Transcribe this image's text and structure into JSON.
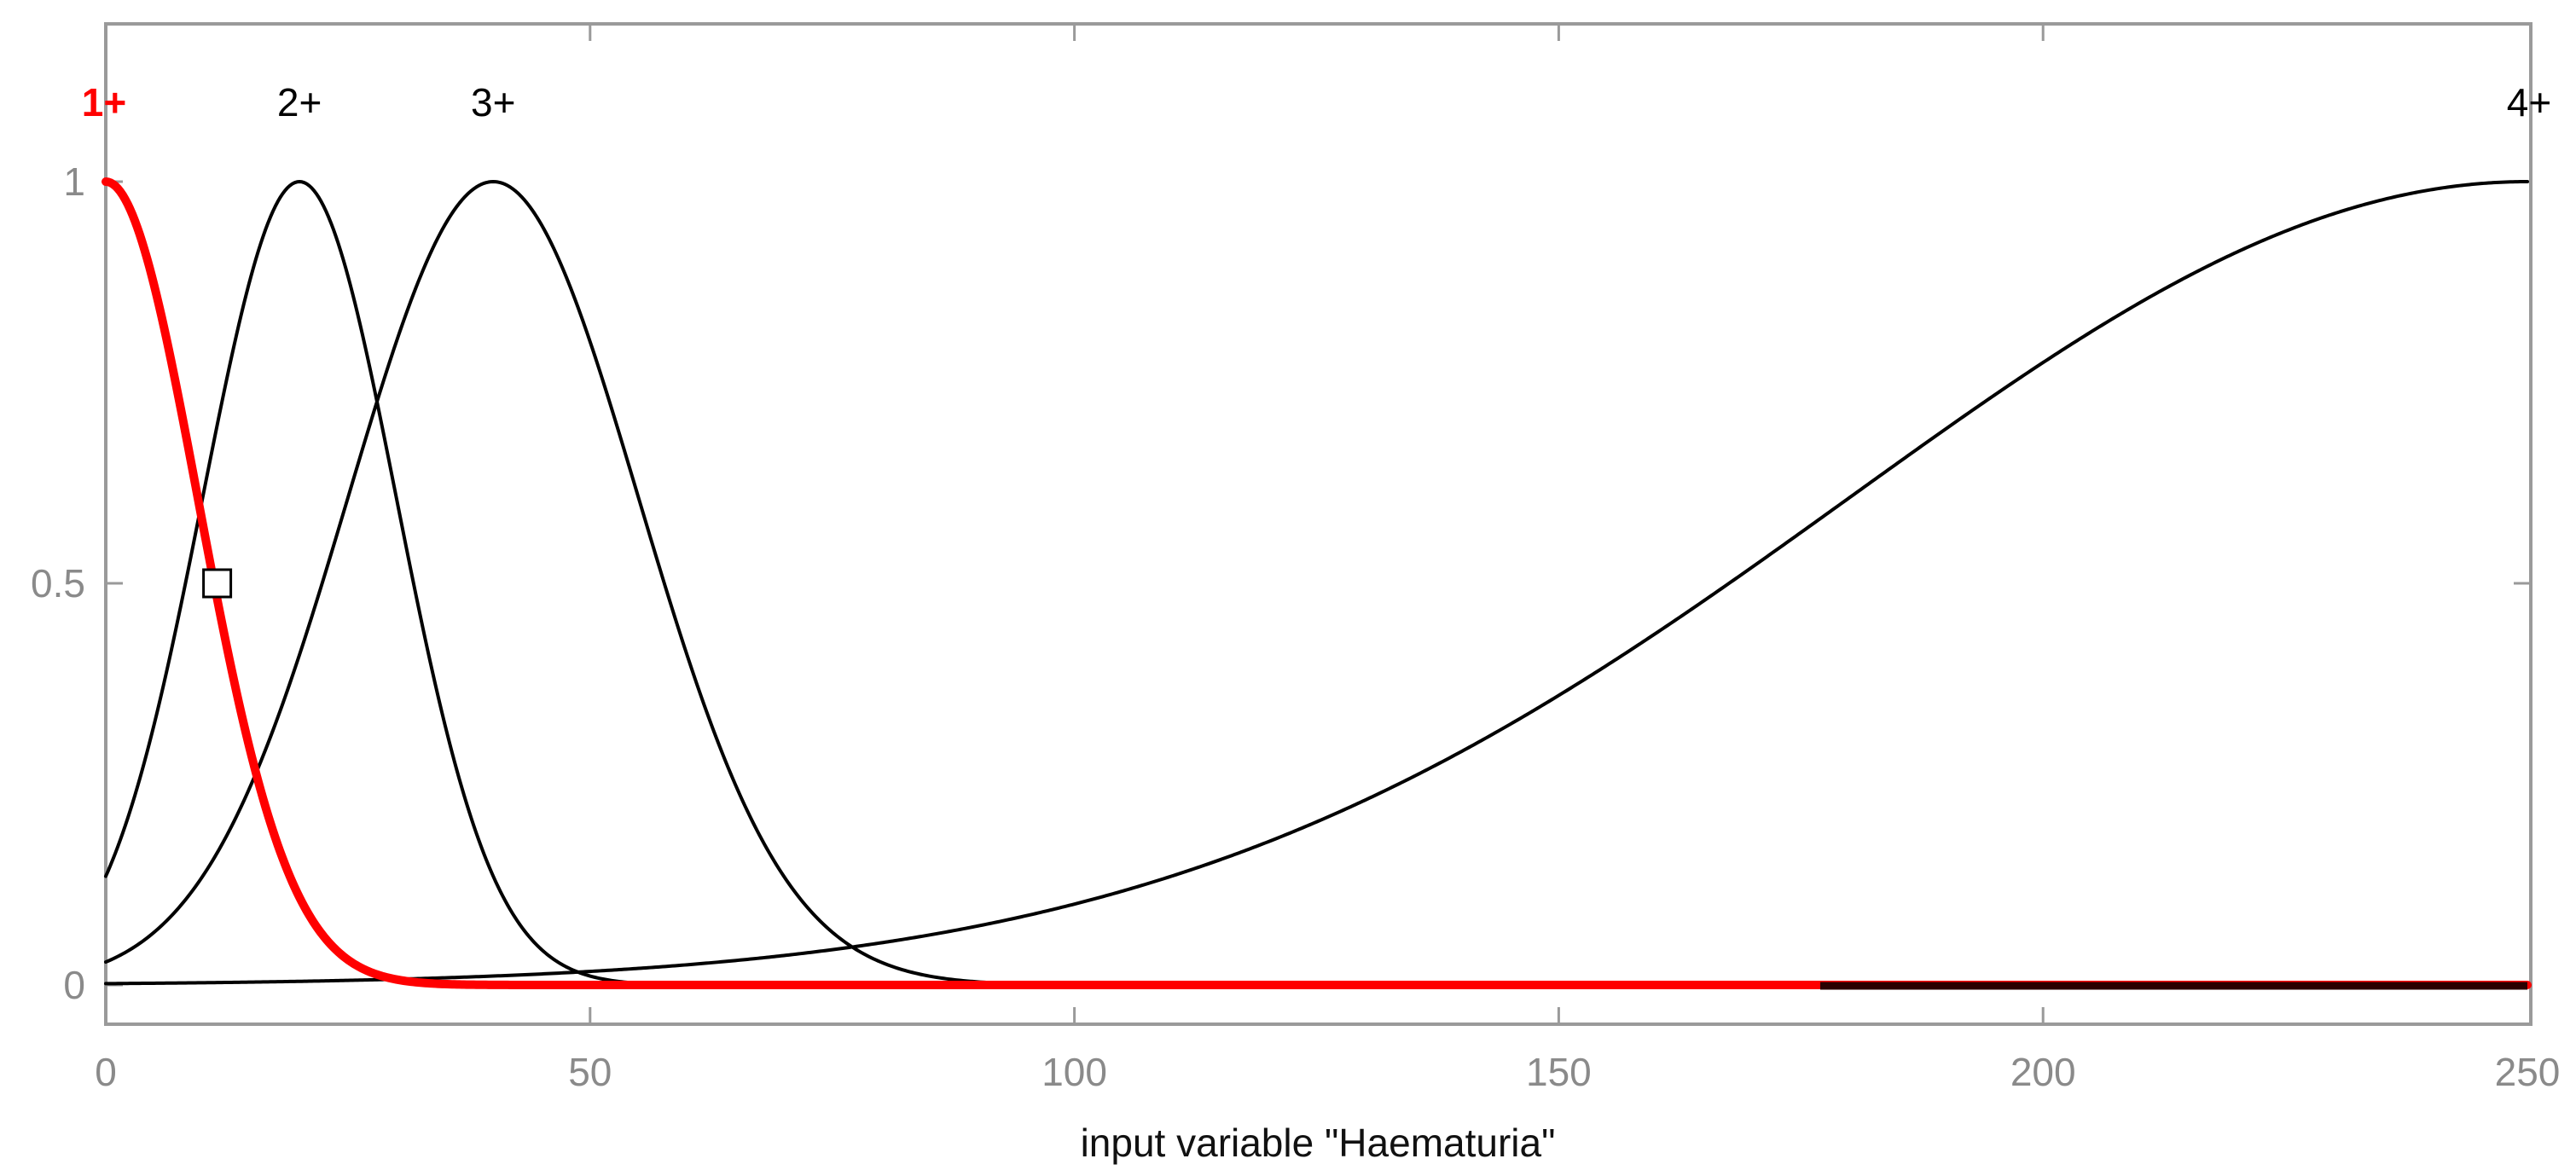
{
  "chart_data": {
    "type": "line",
    "title": "",
    "xlabel": "input variable \"Haematuria\"",
    "ylabel": "",
    "xlim": [
      0,
      250
    ],
    "ylim": [
      -0.05,
      1.2
    ],
    "x_ticks": [
      0,
      50,
      100,
      150,
      200,
      250
    ],
    "y_ticks": [
      0,
      0.5,
      1
    ],
    "x_tick_labels": [
      "0",
      "50",
      "100",
      "150",
      "200",
      "250"
    ],
    "y_tick_labels": [
      "0",
      "0.5",
      "1"
    ],
    "grid": false,
    "colors": {
      "frame": "#9a9a9a",
      "selected": "#ff0000",
      "default": "#000000"
    },
    "series": [
      {
        "name": "1+",
        "shape": "gaussian",
        "center": 0,
        "sigma": 9.5,
        "selected": true,
        "points": [
          [
            0,
            1.0
          ],
          [
            5,
            0.87
          ],
          [
            10,
            0.57
          ],
          [
            15,
            0.29
          ],
          [
            20,
            0.11
          ],
          [
            25,
            0.03
          ],
          [
            30,
            0.01
          ],
          [
            35,
            0.0
          ],
          [
            250,
            0.0
          ]
        ]
      },
      {
        "name": "2+",
        "shape": "gaussian",
        "center": 20,
        "sigma": 10,
        "selected": false,
        "points": [
          [
            0,
            0.14
          ],
          [
            10,
            0.61
          ],
          [
            20,
            1.0
          ],
          [
            30,
            0.61
          ],
          [
            40,
            0.14
          ],
          [
            50,
            0.01
          ],
          [
            60,
            0.0
          ],
          [
            250,
            0.0
          ]
        ]
      },
      {
        "name": "3+",
        "shape": "gaussian",
        "center": 40,
        "sigma": 15,
        "selected": false,
        "points": [
          [
            0,
            0.03
          ],
          [
            10,
            0.14
          ],
          [
            20,
            0.41
          ],
          [
            30,
            0.8
          ],
          [
            40,
            1.0
          ],
          [
            50,
            0.8
          ],
          [
            60,
            0.41
          ],
          [
            70,
            0.14
          ],
          [
            80,
            0.03
          ],
          [
            90,
            0.0
          ],
          [
            250,
            0.0
          ]
        ]
      },
      {
        "name": "4+",
        "shape": "gaussian",
        "center": 250,
        "sigma": 70,
        "selected": false,
        "points": [
          [
            0,
            0.0
          ],
          [
            50,
            0.02
          ],
          [
            100,
            0.1
          ],
          [
            150,
            0.36
          ],
          [
            200,
            0.77
          ],
          [
            250,
            1.0
          ]
        ]
      }
    ],
    "marker": {
      "shape": "square",
      "x": 11.5,
      "y": 0.5
    }
  }
}
